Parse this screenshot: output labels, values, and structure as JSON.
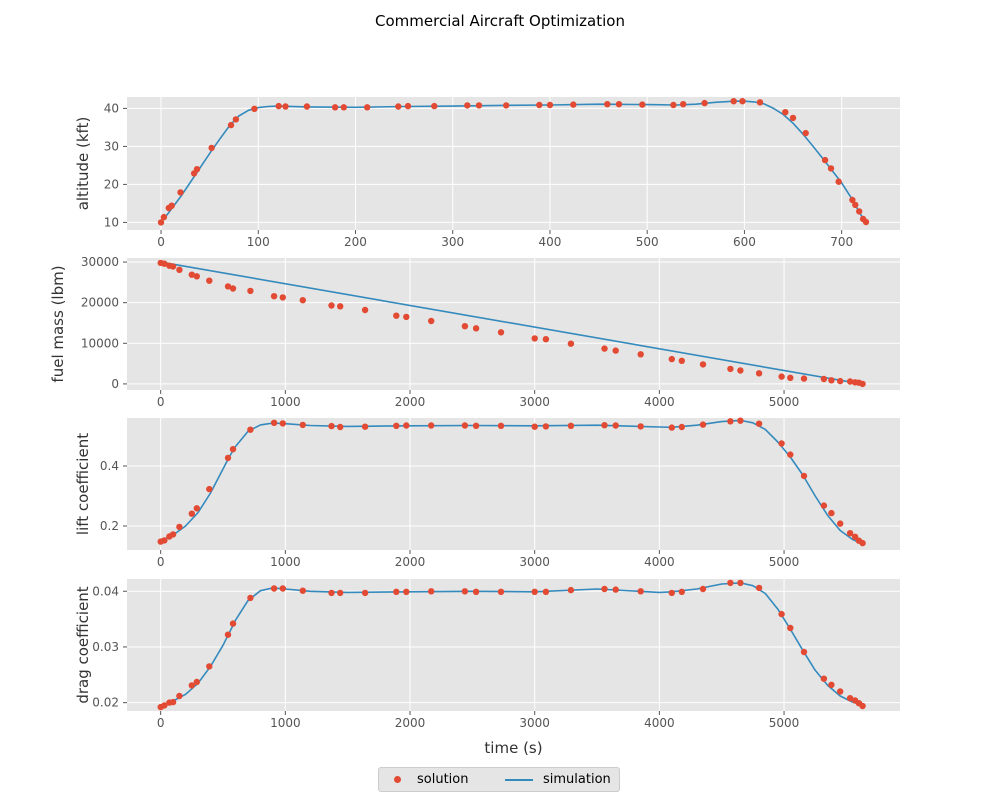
{
  "figure": {
    "title": "Commercial Aircraft Optimization",
    "colors": {
      "solution": "#E24A33",
      "simulation": "#348ABD",
      "panel_bg": "#E5E5E5",
      "grid": "#FFFFFF"
    }
  },
  "legend": {
    "placement": "bottom-center",
    "items": [
      {
        "label": "solution",
        "marker": "dot"
      },
      {
        "label": "simulation",
        "marker": "line"
      }
    ]
  },
  "chart_data": [
    {
      "type": "line",
      "ylabel": "altitude (kft)",
      "xlabel": "",
      "xlim": [
        -35,
        760
      ],
      "ylim": [
        8,
        43
      ],
      "xticks": [
        0,
        100,
        200,
        300,
        400,
        500,
        600,
        700
      ],
      "yticks": [
        10,
        20,
        30,
        40
      ],
      "grid": true,
      "series": [
        {
          "name": "simulation",
          "style": "line",
          "x": [
            0,
            5,
            10,
            15,
            20,
            30,
            40,
            50,
            60,
            70,
            80,
            90,
            100,
            110,
            120,
            150,
            200,
            250,
            300,
            350,
            400,
            450,
            500,
            530,
            550,
            570,
            590,
            600,
            610,
            620,
            630,
            640,
            650,
            660,
            670,
            680,
            690,
            700,
            710,
            720,
            725
          ],
          "y": [
            10,
            11.6,
            13.3,
            15,
            16.7,
            20.5,
            24.3,
            28.1,
            31.8,
            35.3,
            38.0,
            39.5,
            40.2,
            40.5,
            40.6,
            40.4,
            40.3,
            40.5,
            40.6,
            40.8,
            40.9,
            41.1,
            41.0,
            40.9,
            41.1,
            41.6,
            41.9,
            41.9,
            41.7,
            41.2,
            40.0,
            38.4,
            36.1,
            33.3,
            30.2,
            27.0,
            23.7,
            20.4,
            16.4,
            11.9,
            10.0
          ]
        },
        {
          "name": "solution",
          "style": "scatter",
          "x": [
            0,
            3,
            8,
            11,
            20,
            34,
            37,
            52,
            72,
            77,
            96,
            121,
            128,
            150,
            179,
            188,
            212,
            244,
            254,
            281,
            315,
            327,
            355,
            389,
            400,
            424,
            459,
            471,
            495,
            527,
            537,
            559,
            589,
            598,
            616,
            642,
            650,
            663,
            683,
            689,
            697,
            711,
            714,
            718,
            722,
            725
          ],
          "y": [
            10,
            11.4,
            13.8,
            14.4,
            17.9,
            22.9,
            24.0,
            29.6,
            35.6,
            37.1,
            39.9,
            40.6,
            40.5,
            40.5,
            40.3,
            40.3,
            40.3,
            40.5,
            40.6,
            40.6,
            40.8,
            40.8,
            40.8,
            40.9,
            40.9,
            41.0,
            41.1,
            41.1,
            41.0,
            40.9,
            41.1,
            41.4,
            41.9,
            41.9,
            41.6,
            39.0,
            37.5,
            33.5,
            26.4,
            24.2,
            20.7,
            15.9,
            14.6,
            12.9,
            10.9,
            10.1
          ]
        }
      ]
    },
    {
      "type": "line",
      "ylabel": "fuel mass (lbm)",
      "xlabel": "",
      "xlim": [
        -270,
        5930
      ],
      "ylim": [
        -1500,
        31000
      ],
      "xticks": [
        0,
        1000,
        2000,
        3000,
        4000,
        5000
      ],
      "yticks": [
        0,
        10000,
        20000,
        30000
      ],
      "grid": true,
      "series": [
        {
          "name": "simulation",
          "style": "line",
          "x": [
            0,
            5620
          ],
          "y": [
            30000,
            0
          ]
        },
        {
          "name": "solution",
          "style": "scatter",
          "x": [
            0,
            30,
            70,
            100,
            150,
            250,
            290,
            390,
            540,
            580,
            720,
            910,
            980,
            1140,
            1370,
            1440,
            1640,
            1890,
            1970,
            2170,
            2440,
            2530,
            2730,
            3000,
            3090,
            3290,
            3560,
            3650,
            3850,
            4100,
            4180,
            4350,
            4570,
            4650,
            4800,
            4980,
            5050,
            5160,
            5320,
            5380,
            5450,
            5530,
            5570,
            5600,
            5630
          ],
          "y": [
            29800,
            29600,
            29100,
            28900,
            28100,
            26900,
            26500,
            25400,
            24000,
            23500,
            22900,
            21600,
            21300,
            20600,
            19300,
            19100,
            18200,
            16800,
            16500,
            15500,
            14200,
            13700,
            12700,
            11200,
            11000,
            9900,
            8700,
            8200,
            7300,
            6100,
            5700,
            4800,
            3700,
            3300,
            2600,
            1800,
            1500,
            1300,
            1200,
            900,
            700,
            600,
            400,
            300,
            0
          ]
        }
      ]
    },
    {
      "type": "line",
      "ylabel": "lift coefficient",
      "xlabel": "",
      "xlim": [
        -270,
        5930
      ],
      "ylim": [
        0.12,
        0.56
      ],
      "xticks": [
        0,
        1000,
        2000,
        3000,
        4000,
        5000
      ],
      "yticks": [
        0.2,
        0.4
      ],
      "grid": true,
      "series": [
        {
          "name": "simulation",
          "style": "line",
          "x": [
            0,
            100,
            200,
            300,
            400,
            500,
            550,
            600,
            700,
            800,
            900,
            1000,
            1200,
            1500,
            2000,
            2500,
            3000,
            3500,
            4000,
            4100,
            4300,
            4500,
            4650,
            4750,
            4850,
            4950,
            5050,
            5150,
            5250,
            5350,
            5450,
            5550,
            5630
          ],
          "y": [
            0.15,
            0.17,
            0.2,
            0.245,
            0.31,
            0.39,
            0.43,
            0.465,
            0.515,
            0.537,
            0.543,
            0.541,
            0.535,
            0.532,
            0.534,
            0.535,
            0.534,
            0.536,
            0.53,
            0.529,
            0.536,
            0.548,
            0.552,
            0.544,
            0.522,
            0.48,
            0.43,
            0.37,
            0.3,
            0.235,
            0.185,
            0.155,
            0.14
          ]
        },
        {
          "name": "solution",
          "style": "scatter",
          "x": [
            0,
            30,
            70,
            100,
            150,
            250,
            290,
            390,
            540,
            580,
            720,
            910,
            980,
            1140,
            1370,
            1440,
            1640,
            1890,
            1970,
            2170,
            2440,
            2530,
            2730,
            3000,
            3090,
            3290,
            3560,
            3650,
            3850,
            4100,
            4180,
            4350,
            4570,
            4650,
            4800,
            4980,
            5050,
            5160,
            5320,
            5380,
            5450,
            5530,
            5570,
            5600,
            5630
          ],
          "y": [
            0.148,
            0.152,
            0.165,
            0.172,
            0.197,
            0.241,
            0.259,
            0.323,
            0.427,
            0.456,
            0.521,
            0.544,
            0.542,
            0.537,
            0.533,
            0.53,
            0.531,
            0.534,
            0.535,
            0.535,
            0.535,
            0.534,
            0.534,
            0.531,
            0.532,
            0.534,
            0.536,
            0.535,
            0.532,
            0.528,
            0.53,
            0.538,
            0.549,
            0.551,
            0.541,
            0.475,
            0.438,
            0.367,
            0.268,
            0.243,
            0.208,
            0.176,
            0.164,
            0.151,
            0.143
          ]
        }
      ]
    },
    {
      "type": "line",
      "ylabel": "drag coefficient",
      "xlabel": "time (s)",
      "xlim": [
        -270,
        5930
      ],
      "ylim": [
        0.0185,
        0.0422
      ],
      "xticks": [
        0,
        1000,
        2000,
        3000,
        4000,
        5000
      ],
      "yticks": [
        0.02,
        0.03,
        0.04
      ],
      "grid": true,
      "series": [
        {
          "name": "simulation",
          "style": "line",
          "x": [
            0,
            100,
            200,
            300,
            400,
            500,
            550,
            600,
            700,
            800,
            900,
            1000,
            1200,
            1500,
            2000,
            2500,
            3000,
            3500,
            4000,
            4100,
            4300,
            4500,
            4650,
            4750,
            4850,
            4950,
            5050,
            5150,
            5250,
            5350,
            5450,
            5550,
            5630
          ],
          "y": [
            0.0193,
            0.0203,
            0.0215,
            0.0235,
            0.0265,
            0.0303,
            0.0325,
            0.0348,
            0.0383,
            0.0401,
            0.0406,
            0.0404,
            0.04,
            0.0398,
            0.0399,
            0.04,
            0.0399,
            0.0404,
            0.0398,
            0.0399,
            0.0404,
            0.0413,
            0.0415,
            0.041,
            0.0396,
            0.0368,
            0.0332,
            0.0294,
            0.0258,
            0.0231,
            0.0212,
            0.0201,
            0.0195
          ]
        },
        {
          "name": "solution",
          "style": "scatter",
          "x": [
            0,
            30,
            70,
            100,
            150,
            250,
            290,
            390,
            540,
            580,
            720,
            910,
            980,
            1140,
            1370,
            1440,
            1640,
            1890,
            1970,
            2170,
            2440,
            2530,
            2730,
            3000,
            3090,
            3290,
            3560,
            3650,
            3850,
            4100,
            4180,
            4350,
            4570,
            4650,
            4800,
            4980,
            5050,
            5160,
            5320,
            5380,
            5450,
            5530,
            5570,
            5600,
            5630
          ],
          "y": [
            0.0192,
            0.0195,
            0.02,
            0.0201,
            0.0212,
            0.0231,
            0.0237,
            0.0265,
            0.0322,
            0.0342,
            0.0388,
            0.0405,
            0.0405,
            0.0401,
            0.0397,
            0.0397,
            0.0397,
            0.0399,
            0.0399,
            0.04,
            0.04,
            0.0399,
            0.0399,
            0.0399,
            0.0399,
            0.0402,
            0.0404,
            0.0403,
            0.04,
            0.0397,
            0.0399,
            0.0404,
            0.0415,
            0.0415,
            0.0406,
            0.0359,
            0.0334,
            0.0291,
            0.0243,
            0.0232,
            0.022,
            0.0208,
            0.0204,
            0.0199,
            0.0194
          ]
        }
      ]
    }
  ]
}
